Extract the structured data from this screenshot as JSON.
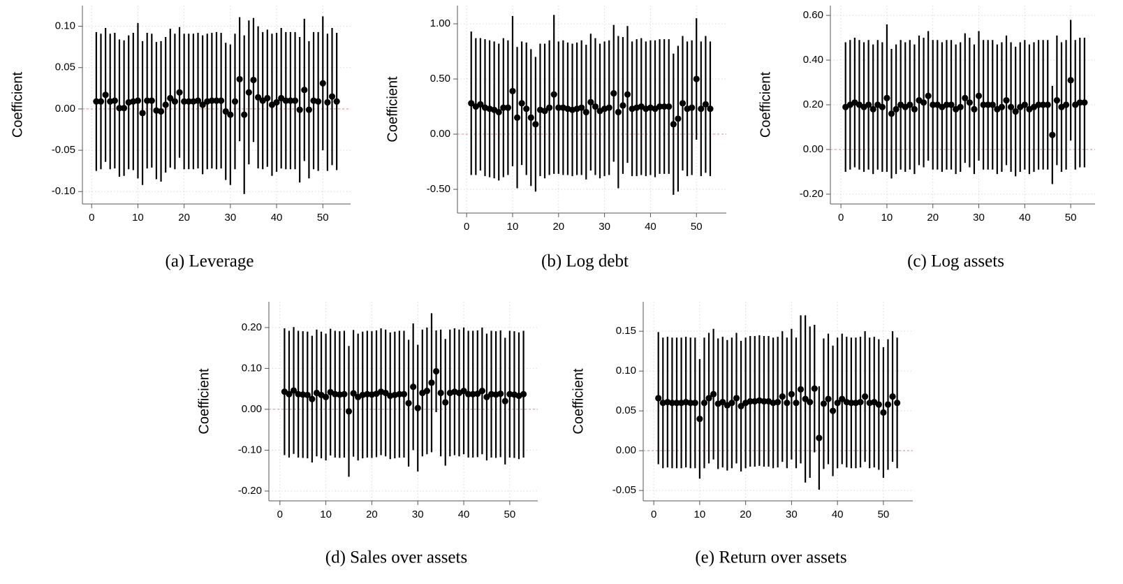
{
  "chart_data": [
    {
      "type": "errorbar",
      "caption": "(a) Leverage",
      "y_label": "Coefficient",
      "grid": true,
      "color": "#000000",
      "hline": 0,
      "hline_color": "#f08080",
      "xlim": [
        -2,
        56
      ],
      "xticks": [
        0,
        10,
        20,
        30,
        40,
        50
      ],
      "ylim": [
        -0.115,
        0.125
      ],
      "yticks": [
        {
          "value": -0.1,
          "label": "-0.10"
        },
        {
          "value": -0.05,
          "label": "-0.05"
        },
        {
          "value": 0,
          "label": "0.00"
        },
        {
          "value": 0.05,
          "label": "0.05"
        },
        {
          "value": 0.1,
          "label": "0.10"
        }
      ],
      "x": [
        1,
        2,
        3,
        4,
        5,
        6,
        7,
        8,
        9,
        10,
        11,
        12,
        13,
        14,
        15,
        16,
        17,
        18,
        19,
        20,
        21,
        22,
        23,
        24,
        25,
        26,
        27,
        28,
        29,
        30,
        31,
        32,
        33,
        34,
        35,
        36,
        37,
        38,
        39,
        40,
        41,
        42,
        43,
        44,
        45,
        46,
        47,
        48,
        49,
        50,
        51,
        52,
        53
      ],
      "values": [
        0.009,
        0.009,
        0.017,
        0.009,
        0.01,
        0.001,
        0.001,
        0.008,
        0.009,
        0.01,
        -0.005,
        0.01,
        0.01,
        -0.002,
        -0.003,
        0.005,
        0.013,
        0.009,
        0.02,
        0.009,
        0.009,
        0.009,
        0.01,
        0.005,
        0.009,
        0.01,
        0.01,
        0.01,
        -0.003,
        -0.007,
        0.009,
        0.036,
        -0.007,
        0.02,
        0.035,
        0.014,
        0.01,
        0.013,
        0.005,
        0.008,
        0.013,
        0.01,
        0.01,
        0.01,
        -0.001,
        0.023,
        -0.001,
        0.01,
        0.009,
        0.031,
        0.008,
        0.015,
        0.009
      ],
      "errors": [
        0.084,
        0.082,
        0.081,
        0.082,
        0.082,
        0.083,
        0.082,
        0.081,
        0.083,
        0.094,
        0.087,
        0.082,
        0.081,
        0.083,
        0.085,
        0.082,
        0.084,
        0.082,
        0.079,
        0.082,
        0.082,
        0.082,
        0.082,
        0.084,
        0.082,
        0.082,
        0.083,
        0.082,
        0.083,
        0.085,
        0.082,
        0.075,
        0.096,
        0.087,
        0.075,
        0.086,
        0.083,
        0.083,
        0.086,
        0.084,
        0.085,
        0.083,
        0.083,
        0.083,
        0.088,
        0.086,
        0.083,
        0.083,
        0.084,
        0.081,
        0.083,
        0.083,
        0.083
      ]
    },
    {
      "type": "errorbar",
      "caption": "(b) Log debt",
      "y_label": "Coefficient",
      "grid": true,
      "color": "#000000",
      "hline": 0,
      "hline_color": "#f08080",
      "xlim": [
        -2,
        56.5
      ],
      "xticks": [
        0,
        10,
        20,
        30,
        40,
        50
      ],
      "ylim": [
        -0.715,
        1.165
      ],
      "yticks": [
        {
          "value": -0.5,
          "label": "-0.50"
        },
        {
          "value": 0,
          "label": "0.00"
        },
        {
          "value": 0.5,
          "label": "0.50"
        },
        {
          "value": 1,
          "label": "1.00"
        }
      ],
      "x": [
        1,
        2,
        3,
        4,
        5,
        6,
        7,
        8,
        9,
        10,
        11,
        12,
        13,
        14,
        15,
        16,
        17,
        18,
        19,
        20,
        21,
        22,
        23,
        24,
        25,
        26,
        27,
        28,
        29,
        30,
        31,
        32,
        33,
        34,
        35,
        36,
        37,
        38,
        39,
        40,
        41,
        42,
        43,
        44,
        45,
        46,
        47,
        48,
        49,
        50,
        51,
        52,
        53
      ],
      "values": [
        0.28,
        0.25,
        0.27,
        0.24,
        0.23,
        0.22,
        0.2,
        0.24,
        0.24,
        0.39,
        0.15,
        0.28,
        0.23,
        0.15,
        0.09,
        0.22,
        0.21,
        0.24,
        0.36,
        0.24,
        0.24,
        0.23,
        0.22,
        0.23,
        0.24,
        0.2,
        0.29,
        0.25,
        0.21,
        0.23,
        0.24,
        0.37,
        0.2,
        0.26,
        0.36,
        0.23,
        0.24,
        0.25,
        0.23,
        0.24,
        0.23,
        0.25,
        0.25,
        0.25,
        0.09,
        0.14,
        0.28,
        0.23,
        0.24,
        0.5,
        0.23,
        0.27,
        0.23
      ],
      "errors": [
        0.65,
        0.62,
        0.6,
        0.62,
        0.62,
        0.62,
        0.62,
        0.63,
        0.61,
        0.68,
        0.64,
        0.56,
        0.6,
        0.62,
        0.61,
        0.6,
        0.61,
        0.61,
        0.72,
        0.6,
        0.61,
        0.6,
        0.6,
        0.6,
        0.61,
        0.61,
        0.62,
        0.62,
        0.61,
        0.61,
        0.61,
        0.62,
        0.69,
        0.62,
        0.62,
        0.61,
        0.62,
        0.62,
        0.61,
        0.61,
        0.62,
        0.61,
        0.61,
        0.61,
        0.64,
        0.66,
        0.61,
        0.61,
        0.61,
        0.55,
        0.61,
        0.62,
        0.61
      ]
    },
    {
      "type": "errorbar",
      "caption": "(c) Log assets",
      "y_label": "Coefficient",
      "grid": true,
      "color": "#000000",
      "hline": 0,
      "hline_color": "#f08080",
      "xlim": [
        -2.3,
        55.3
      ],
      "xticks": [
        0,
        10,
        20,
        30,
        40,
        50
      ],
      "ylim": [
        -0.244,
        0.644
      ],
      "yticks": [
        {
          "value": -0.2,
          "label": "-0.20"
        },
        {
          "value": 0,
          "label": "0.00"
        },
        {
          "value": 0.2,
          "label": "0.20"
        },
        {
          "value": 0.4,
          "label": "0.40"
        },
        {
          "value": 0.6,
          "label": "0.60"
        }
      ],
      "x": [
        1,
        2,
        3,
        4,
        5,
        6,
        7,
        8,
        9,
        10,
        11,
        12,
        13,
        14,
        15,
        16,
        17,
        18,
        19,
        20,
        21,
        22,
        23,
        24,
        25,
        26,
        27,
        28,
        29,
        30,
        31,
        32,
        33,
        34,
        35,
        36,
        37,
        38,
        39,
        40,
        41,
        42,
        43,
        44,
        45,
        46,
        47,
        48,
        49,
        50,
        51,
        52,
        53
      ],
      "values": [
        0.19,
        0.2,
        0.21,
        0.2,
        0.19,
        0.2,
        0.18,
        0.2,
        0.19,
        0.23,
        0.16,
        0.18,
        0.2,
        0.19,
        0.2,
        0.18,
        0.22,
        0.21,
        0.24,
        0.2,
        0.2,
        0.19,
        0.2,
        0.2,
        0.18,
        0.19,
        0.23,
        0.21,
        0.18,
        0.24,
        0.2,
        0.2,
        0.2,
        0.18,
        0.19,
        0.22,
        0.19,
        0.17,
        0.19,
        0.2,
        0.18,
        0.19,
        0.2,
        0.2,
        0.2,
        0.065,
        0.22,
        0.19,
        0.2,
        0.31,
        0.2,
        0.21,
        0.21
      ],
      "errors": [
        0.29,
        0.29,
        0.29,
        0.29,
        0.29,
        0.29,
        0.29,
        0.29,
        0.29,
        0.33,
        0.29,
        0.29,
        0.29,
        0.29,
        0.29,
        0.29,
        0.29,
        0.29,
        0.29,
        0.29,
        0.29,
        0.29,
        0.29,
        0.29,
        0.29,
        0.29,
        0.29,
        0.29,
        0.29,
        0.29,
        0.29,
        0.29,
        0.29,
        0.29,
        0.29,
        0.29,
        0.29,
        0.29,
        0.29,
        0.29,
        0.29,
        0.29,
        0.29,
        0.29,
        0.29,
        0.22,
        0.29,
        0.29,
        0.29,
        0.27,
        0.29,
        0.29,
        0.29
      ]
    },
    {
      "type": "errorbar",
      "caption": "(d) Sales over assets",
      "y_label": "Coefficient",
      "grid": true,
      "color": "#000000",
      "hline": 0,
      "hline_color": "#f08080",
      "xlim": [
        -2.4,
        56.1
      ],
      "xticks": [
        0,
        10,
        20,
        30,
        40,
        50
      ],
      "ylim": [
        -0.224,
        0.263
      ],
      "yticks": [
        {
          "value": -0.2,
          "label": "-0.20"
        },
        {
          "value": -0.1,
          "label": "-0.10"
        },
        {
          "value": 0,
          "label": "0.00"
        },
        {
          "value": 0.1,
          "label": "0.10"
        },
        {
          "value": 0.2,
          "label": "0.20"
        }
      ],
      "x": [
        1,
        2,
        3,
        4,
        5,
        6,
        7,
        8,
        9,
        10,
        11,
        12,
        13,
        14,
        15,
        16,
        17,
        18,
        19,
        20,
        21,
        22,
        23,
        24,
        25,
        26,
        27,
        28,
        29,
        30,
        31,
        32,
        33,
        34,
        35,
        36,
        37,
        38,
        39,
        40,
        41,
        42,
        43,
        44,
        45,
        46,
        47,
        48,
        49,
        50,
        51,
        52,
        53
      ],
      "values": [
        0.043,
        0.037,
        0.046,
        0.037,
        0.036,
        0.035,
        0.025,
        0.04,
        0.035,
        0.03,
        0.042,
        0.037,
        0.036,
        0.037,
        -0.005,
        0.039,
        0.03,
        0.035,
        0.037,
        0.036,
        0.038,
        0.043,
        0.04,
        0.033,
        0.035,
        0.037,
        0.037,
        0.015,
        0.055,
        0.003,
        0.04,
        0.045,
        0.065,
        0.093,
        0.04,
        0.017,
        0.04,
        0.043,
        0.04,
        0.045,
        0.037,
        0.037,
        0.038,
        0.045,
        0.03,
        0.037,
        0.036,
        0.038,
        0.02,
        0.037,
        0.036,
        0.033,
        0.037
      ],
      "errors": [
        0.155,
        0.155,
        0.155,
        0.155,
        0.155,
        0.155,
        0.155,
        0.155,
        0.155,
        0.155,
        0.155,
        0.155,
        0.155,
        0.155,
        0.16,
        0.155,
        0.155,
        0.155,
        0.155,
        0.155,
        0.155,
        0.155,
        0.155,
        0.155,
        0.155,
        0.155,
        0.155,
        0.155,
        0.155,
        0.155,
        0.155,
        0.155,
        0.17,
        0.1,
        0.155,
        0.155,
        0.155,
        0.155,
        0.155,
        0.155,
        0.155,
        0.155,
        0.155,
        0.155,
        0.155,
        0.155,
        0.155,
        0.155,
        0.155,
        0.155,
        0.155,
        0.155,
        0.155
      ]
    },
    {
      "type": "errorbar",
      "caption": "(e) Return over assets",
      "y_label": "Coefficient",
      "grid": true,
      "color": "#000000",
      "hline": 0,
      "hline_color": "#f08080",
      "xlim": [
        -2.3,
        56.4
      ],
      "xticks": [
        0,
        10,
        20,
        30,
        40,
        50
      ],
      "ylim": [
        -0.063,
        0.187
      ],
      "yticks": [
        {
          "value": -0.05,
          "label": "-0.05"
        },
        {
          "value": 0,
          "label": "0.00"
        },
        {
          "value": 0.05,
          "label": "0.05"
        },
        {
          "value": 0.1,
          "label": "0.10"
        },
        {
          "value": 0.15,
          "label": "0.15"
        }
      ],
      "x": [
        1,
        2,
        3,
        4,
        5,
        6,
        7,
        8,
        9,
        10,
        11,
        12,
        13,
        14,
        15,
        16,
        17,
        18,
        19,
        20,
        21,
        22,
        23,
        24,
        25,
        26,
        27,
        28,
        29,
        30,
        31,
        32,
        33,
        34,
        35,
        36,
        37,
        38,
        39,
        40,
        41,
        42,
        43,
        44,
        45,
        46,
        47,
        48,
        49,
        50,
        51,
        52,
        53
      ],
      "values": [
        0.066,
        0.06,
        0.061,
        0.06,
        0.06,
        0.06,
        0.061,
        0.06,
        0.06,
        0.04,
        0.06,
        0.066,
        0.071,
        0.059,
        0.061,
        0.057,
        0.06,
        0.066,
        0.056,
        0.06,
        0.062,
        0.062,
        0.063,
        0.062,
        0.062,
        0.06,
        0.061,
        0.068,
        0.06,
        0.071,
        0.06,
        0.077,
        0.065,
        0.061,
        0.078,
        0.016,
        0.059,
        0.065,
        0.05,
        0.06,
        0.065,
        0.061,
        0.06,
        0.06,
        0.061,
        0.068,
        0.06,
        0.061,
        0.058,
        0.048,
        0.058,
        0.068,
        0.06
      ],
      "errors": [
        0.083,
        0.082,
        0.082,
        0.082,
        0.082,
        0.082,
        0.082,
        0.082,
        0.082,
        0.075,
        0.082,
        0.082,
        0.082,
        0.082,
        0.082,
        0.082,
        0.082,
        0.082,
        0.082,
        0.082,
        0.082,
        0.082,
        0.082,
        0.082,
        0.082,
        0.082,
        0.082,
        0.082,
        0.082,
        0.082,
        0.082,
        0.093,
        0.105,
        0.095,
        0.08,
        0.065,
        0.082,
        0.082,
        0.082,
        0.082,
        0.082,
        0.082,
        0.082,
        0.082,
        0.082,
        0.082,
        0.082,
        0.082,
        0.082,
        0.082,
        0.082,
        0.082,
        0.082
      ]
    }
  ]
}
